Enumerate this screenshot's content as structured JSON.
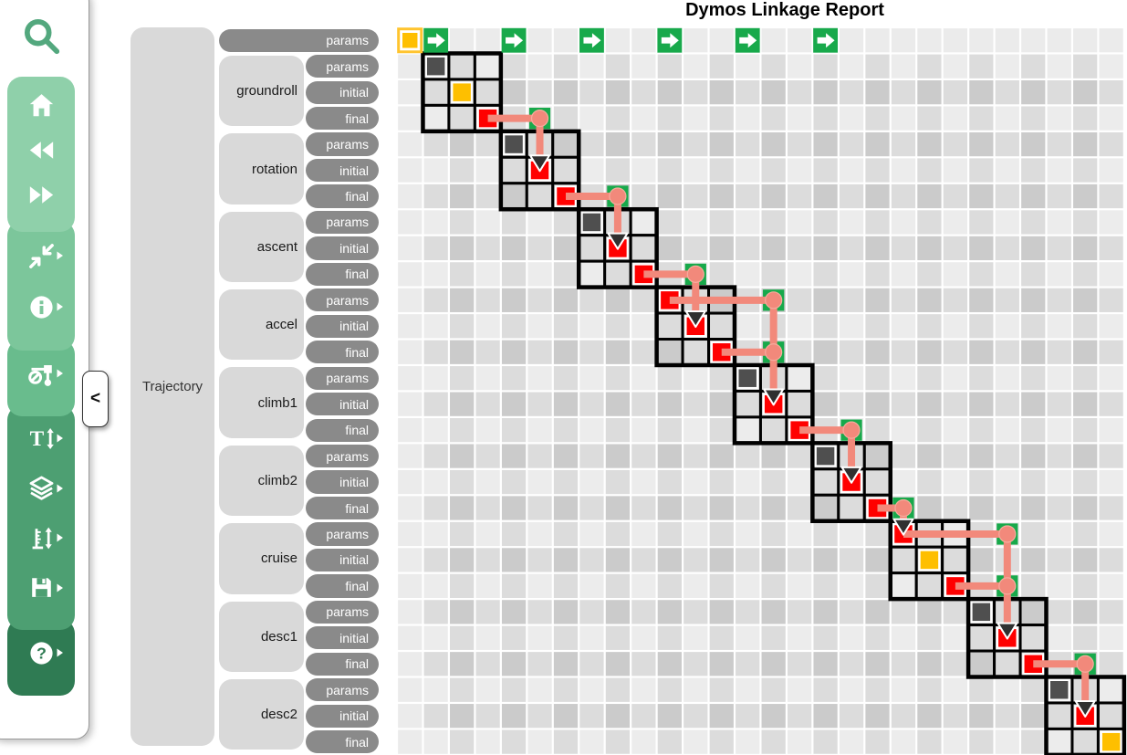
{
  "title": "Dymos Linkage Report",
  "left_panel": {
    "trajectory_label": "Trajectory",
    "top_pill": "params",
    "pills": [
      "params",
      "initial",
      "final"
    ],
    "phases": [
      "groundroll",
      "rotation",
      "ascent",
      "accel",
      "climb1",
      "climb2",
      "cruise",
      "desc1",
      "desc2"
    ]
  },
  "toolbar": {
    "collapse_tab_label": "<",
    "search": {
      "name": "search"
    },
    "sections": [
      {
        "color": "#8FD0AA",
        "items": [
          {
            "name": "home",
            "flyout": false
          },
          {
            "name": "back",
            "flyout": false
          },
          {
            "name": "forward",
            "flyout": false
          }
        ]
      },
      {
        "color": "#7CC69B",
        "items": [
          {
            "name": "collapse-depth",
            "flyout": true
          },
          {
            "name": "info",
            "flyout": true
          }
        ]
      },
      {
        "color": "#69BC8D",
        "items": [
          {
            "name": "hide-connections",
            "flyout": true
          }
        ]
      },
      {
        "color": "#4D9F72",
        "items": [
          {
            "name": "text-height",
            "flyout": true
          },
          {
            "name": "layers",
            "flyout": true
          },
          {
            "name": "model-height",
            "flyout": true
          },
          {
            "name": "save",
            "flyout": true
          }
        ]
      },
      {
        "color": "#2F7B53",
        "items": [
          {
            "name": "help",
            "flyout": true
          }
        ]
      }
    ]
  },
  "grid": {
    "rows": 28,
    "cols": 28,
    "param_arrow_cols": [
      1,
      4,
      7,
      10,
      13,
      16
    ],
    "phases": [
      {
        "name": "groundroll",
        "start": 1,
        "cells": [
          "dark",
          "amber",
          "red"
        ]
      },
      {
        "name": "rotation",
        "start": 4,
        "cells": [
          "dark",
          "red",
          "red"
        ]
      },
      {
        "name": "ascent",
        "start": 7,
        "cells": [
          "dark",
          "red",
          "red"
        ]
      },
      {
        "name": "accel",
        "start": 10,
        "cells": [
          "red",
          "red",
          "red"
        ]
      },
      {
        "name": "climb1",
        "start": 13,
        "cells": [
          "dark",
          "red",
          "red"
        ]
      },
      {
        "name": "climb2",
        "start": 16,
        "cells": [
          "dark",
          "red",
          "red"
        ]
      },
      {
        "name": "cruise",
        "start": 19,
        "cells": [
          "red",
          "amber",
          "red"
        ]
      },
      {
        "name": "desc1",
        "start": 22,
        "cells": [
          "dark",
          "red",
          "red"
        ]
      },
      {
        "name": "desc2",
        "start": 25,
        "cells": [
          "dark",
          "red",
          "amber"
        ]
      }
    ],
    "connections": [
      {
        "src": [
          3,
          3
        ],
        "elbow_col": 5,
        "dst": [
          5,
          5
        ]
      },
      {
        "src": [
          6,
          6
        ],
        "elbow_col": 8,
        "dst": [
          8,
          8
        ]
      },
      {
        "src": [
          9,
          9
        ],
        "elbow_col": 11,
        "dst": [
          11,
          11
        ]
      },
      {
        "src": [
          10,
          10
        ],
        "elbow_col": 14,
        "dst": [
          14,
          14
        ]
      },
      {
        "src": [
          12,
          12
        ],
        "elbow_col": 14,
        "dst": null
      },
      {
        "src": [
          15,
          15
        ],
        "elbow_col": 17,
        "dst": [
          17,
          17
        ]
      },
      {
        "src": [
          18,
          18
        ],
        "elbow_col": 19,
        "dst": [
          19,
          19
        ]
      },
      {
        "src": [
          19,
          19
        ],
        "elbow_col": 23,
        "dst": [
          23,
          23
        ]
      },
      {
        "src": [
          21,
          21
        ],
        "elbow_col": 23,
        "dst": null
      },
      {
        "src": [
          24,
          24
        ],
        "elbow_col": 26,
        "dst": [
          26,
          26
        ]
      }
    ]
  },
  "colors": {
    "green": "#18A94B",
    "amber": "#FEBF00",
    "amber_border": "#FFC42E",
    "red": "#FF0000",
    "dark_cell": "#4F4F4F",
    "link": "#F2897B",
    "arrowhead": "#303030",
    "pill": "#8A8A8A",
    "label_box": "#D9D9D9",
    "bg_axis": "#EBEBEB",
    "bg_dark": "#CBCBCB",
    "bg_mid": "#DCDCDC",
    "bg_light": "#ECECEC",
    "search_icon": "#53A87E"
  }
}
